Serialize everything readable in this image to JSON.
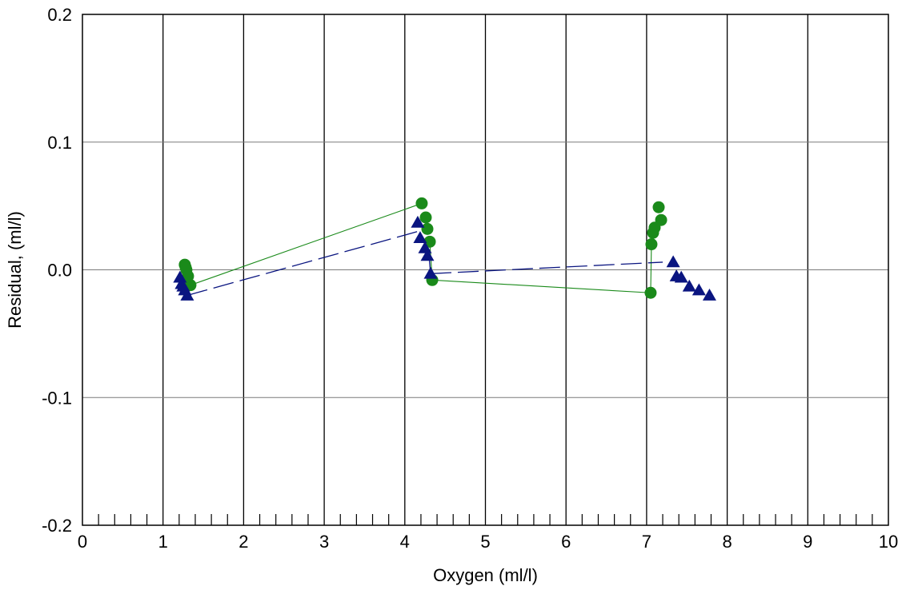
{
  "chart_data": {
    "type": "scatter",
    "title": "",
    "xlabel": "Oxygen (ml/l)",
    "ylabel": "Residual, (ml/l)",
    "xlim": [
      0,
      10
    ],
    "ylim": [
      -0.2,
      0.2
    ],
    "x_ticks": [
      0,
      1,
      2,
      3,
      4,
      5,
      6,
      7,
      8,
      9,
      10
    ],
    "x_tick_labels": [
      "0",
      "1",
      "2",
      "3",
      "4",
      "5",
      "6",
      "7",
      "8",
      "9",
      "10"
    ],
    "y_ticks": [
      -0.2,
      -0.1,
      0.0,
      0.1,
      0.2
    ],
    "y_tick_labels": [
      "-0.2",
      "-0.1",
      "0.0",
      "0.1",
      "0.2"
    ],
    "minor_x_tick_step": 0.2,
    "grid": true,
    "legend": "none",
    "series": [
      {
        "marker": "circle",
        "color": "#1a8a1a",
        "line_style": "solid",
        "points": [
          [
            1.27,
            0.004
          ],
          [
            1.28,
            0.002
          ],
          [
            1.29,
            0.0
          ],
          [
            1.31,
            -0.005
          ],
          [
            1.34,
            -0.012
          ],
          [
            4.21,
            0.052
          ],
          [
            4.26,
            0.041
          ],
          [
            4.28,
            0.032
          ],
          [
            4.31,
            0.022
          ],
          [
            4.34,
            -0.008
          ],
          [
            7.05,
            -0.018
          ],
          [
            7.06,
            0.02
          ],
          [
            7.08,
            0.029
          ],
          [
            7.1,
            0.033
          ],
          [
            7.15,
            0.049
          ],
          [
            7.18,
            0.039
          ]
        ],
        "connectors": [
          [
            [
              1.34,
              -0.012
            ],
            [
              4.21,
              0.052
            ]
          ],
          [
            [
              4.31,
              0.022
            ],
            [
              4.34,
              -0.008
            ]
          ],
          [
            [
              4.34,
              -0.008
            ],
            [
              7.05,
              -0.018
            ]
          ],
          [
            [
              7.05,
              -0.018
            ],
            [
              7.06,
              0.02
            ]
          ]
        ]
      },
      {
        "marker": "triangle",
        "color": "#0a1580",
        "line_style": "dashed",
        "points": [
          [
            1.21,
            -0.006
          ],
          [
            1.23,
            -0.011
          ],
          [
            1.25,
            -0.013
          ],
          [
            1.27,
            -0.016
          ],
          [
            1.3,
            -0.02
          ],
          [
            4.16,
            0.037
          ],
          [
            4.19,
            0.025
          ],
          [
            4.25,
            0.017
          ],
          [
            4.28,
            0.011
          ],
          [
            4.32,
            -0.003
          ],
          [
            7.33,
            0.006
          ],
          [
            7.37,
            -0.005
          ],
          [
            7.43,
            -0.006
          ],
          [
            7.53,
            -0.013
          ],
          [
            7.65,
            -0.016
          ],
          [
            7.78,
            -0.02
          ]
        ],
        "connectors": [
          [
            [
              1.3,
              -0.02
            ],
            [
              4.16,
              0.03
            ]
          ],
          [
            [
              4.3,
              0.011
            ],
            [
              4.32,
              -0.003
            ]
          ],
          [
            [
              4.32,
              -0.003
            ],
            [
              7.2,
              0.006
            ]
          ]
        ]
      }
    ]
  }
}
